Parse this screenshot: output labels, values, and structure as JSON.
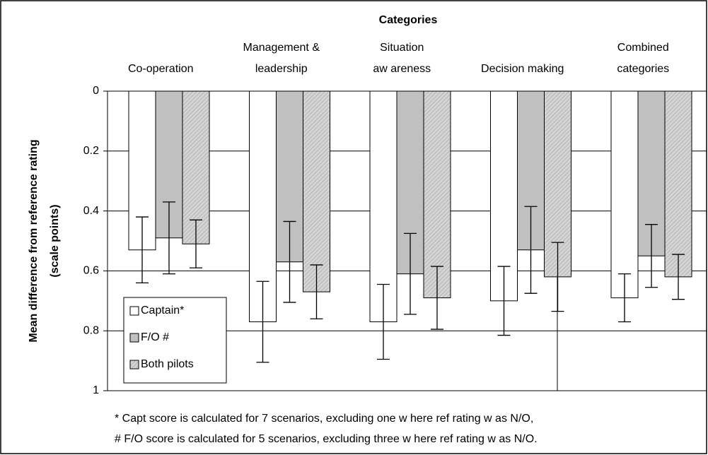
{
  "chart_data": {
    "type": "bar",
    "title": "Categories",
    "categories": [
      [
        "Co-operation"
      ],
      [
        "Management &",
        "leadership"
      ],
      [
        "Situation",
        "aw areness"
      ],
      [
        "Decision making"
      ],
      [
        "Combined",
        "categories"
      ]
    ],
    "y_label": [
      "Mean difference from reference rating",
      "(scale points)"
    ],
    "series": [
      {
        "name": "Captain*",
        "color": "#ffffff",
        "values": [
          0.53,
          0.77,
          0.77,
          0.7,
          0.69
        ],
        "errors": [
          0.11,
          0.135,
          0.125,
          0.115,
          0.08
        ]
      },
      {
        "name": "F/O #",
        "color": "#c0c0c0",
        "values": [
          0.49,
          0.57,
          0.61,
          0.53,
          0.55
        ],
        "errors": [
          0.12,
          0.135,
          0.135,
          0.145,
          0.105
        ]
      },
      {
        "name": "Both pilots",
        "color": "#d4d4d4",
        "hatch": true,
        "values": [
          0.51,
          0.67,
          0.69,
          0.62,
          0.62
        ],
        "errors": [
          0.08,
          0.09,
          0.105,
          0.115,
          0.075
        ]
      }
    ],
    "ylim": [
      0,
      1
    ],
    "y_inverted": true,
    "yticks": [
      0,
      0.2,
      0.4,
      0.6,
      0.8,
      1
    ],
    "grid": true,
    "notes": [
      "* Capt score is calculated for 7 scenarios, excluding one w here ref rating w as N/O,",
      "# F/O score is calculated for 5 scenarios, excluding three w here ref rating w as N/O."
    ]
  }
}
